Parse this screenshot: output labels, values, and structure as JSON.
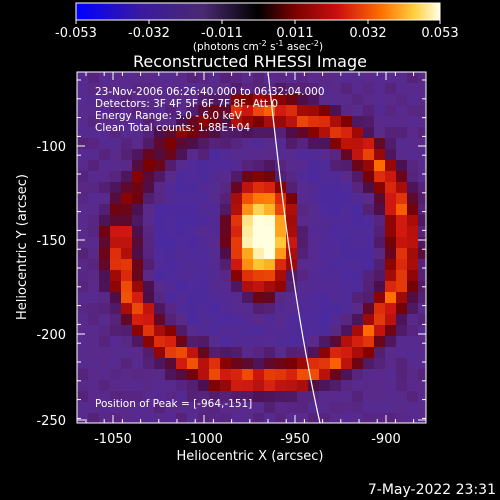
{
  "colorbar": {
    "tick_labels": [
      "-0.053",
      "-0.032",
      "-0.011",
      "0.011",
      "0.032",
      "0.053"
    ],
    "unit_prefix": "(photons cm",
    "unit_exp1": "-2",
    "unit_mid": " s",
    "unit_exp2": "-1",
    "unit_mid2": " asec",
    "unit_exp3": "-2",
    "unit_suffix": ")"
  },
  "title": "Reconstructed RHESSI Image",
  "annotations": {
    "time_range": "23-Nov-2006 06:26:40.000 to 06:32:04.000",
    "detectors": "Detectors: 3F 4F 5F 6F 7F 8F, Att 0",
    "energy": "Energy Range: 3.0 - 6.0 keV",
    "clean": "Clean     Total counts: 1.88E+04",
    "peak": "Position of Peak = [-964,-151]"
  },
  "axes": {
    "xlabel": "Heliocentric X (arcsec)",
    "ylabel": "Heliocentric Y (arcsec)",
    "x_ticks": [
      "-1050",
      "-1000",
      "-950",
      "-900"
    ],
    "y_ticks": [
      "-100",
      "-150",
      "-200",
      "-250"
    ],
    "xlim": [
      -1075,
      -880
    ],
    "ylim": [
      -252,
      -62
    ]
  },
  "timestamp": "7-May-2022 23:31",
  "colors": {
    "background": "#000000",
    "colormap": [
      "#0000ff",
      "#3a1a9a",
      "#5a2a8a",
      "#000000",
      "#7a0000",
      "#d01010",
      "#ff6a00",
      "#ffd040",
      "#ffffe0"
    ]
  }
}
